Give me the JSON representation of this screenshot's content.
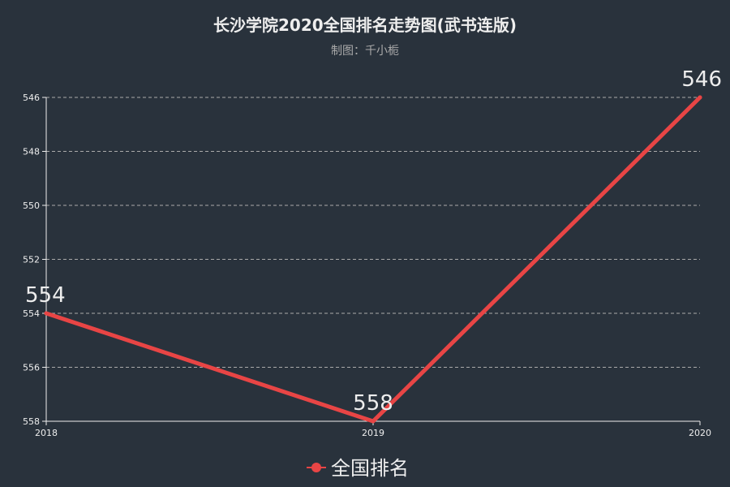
{
  "chart_data": {
    "type": "line",
    "title": "长沙学院2020全国排名走势图(武书连版)",
    "subtitle": "制图：千小栀",
    "x": [
      "2018",
      "2019",
      "2020"
    ],
    "series": [
      {
        "name": "全国排名",
        "values": [
          554,
          558,
          546
        ],
        "color": "#e84545"
      }
    ],
    "ylim": [
      546,
      558
    ],
    "y_inverted": true,
    "y_ticks": [
      546,
      548,
      550,
      552,
      554,
      556,
      558
    ],
    "grid": true,
    "legend_position": "bottom-center",
    "colors": {
      "background": "#29323c",
      "text": "#eeeeee",
      "subtitle": "#aaaaaa",
      "grid": "#aaaaaa",
      "axis": "#eeeeee"
    }
  }
}
